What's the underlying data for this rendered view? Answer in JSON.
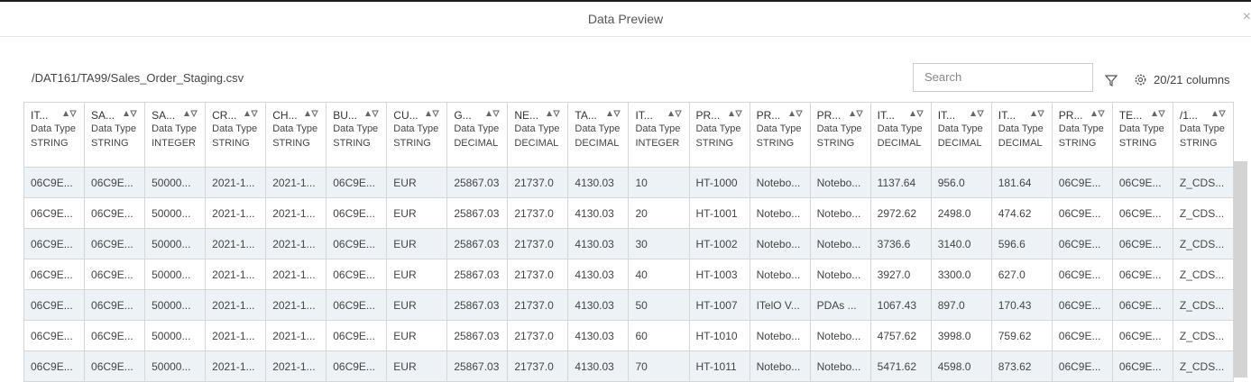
{
  "header": {
    "title": "Data Preview"
  },
  "toolbar": {
    "path": "/DAT161/TA99/Sales_Order_Staging.csv",
    "search_placeholder": "Search",
    "columns_count": "20/21 columns"
  },
  "table": {
    "columns": [
      {
        "name": "IT...",
        "label": "Data Type",
        "type": "STRING"
      },
      {
        "name": "SA...",
        "label": "Data Type",
        "type": "STRING"
      },
      {
        "name": "SA...",
        "label": "Data Type",
        "type": "INTEGER"
      },
      {
        "name": "CR...",
        "label": "Data Type",
        "type": "STRING"
      },
      {
        "name": "CH...",
        "label": "Data Type",
        "type": "STRING"
      },
      {
        "name": "BU...",
        "label": "Data Type",
        "type": "STRING"
      },
      {
        "name": "CU...",
        "label": "Data Type",
        "type": "STRING"
      },
      {
        "name": "G...",
        "label": "Data Type",
        "type": "DECIMAL"
      },
      {
        "name": "NE...",
        "label": "Data Type",
        "type": "DECIMAL"
      },
      {
        "name": "TA...",
        "label": "Data Type",
        "type": "DECIMAL"
      },
      {
        "name": "IT...",
        "label": "Data Type",
        "type": "INTEGER"
      },
      {
        "name": "PR...",
        "label": "Data Type",
        "type": "STRING"
      },
      {
        "name": "PR...",
        "label": "Data Type",
        "type": "STRING"
      },
      {
        "name": "PR...",
        "label": "Data Type",
        "type": "STRING"
      },
      {
        "name": "IT...",
        "label": "Data Type",
        "type": "DECIMAL"
      },
      {
        "name": "IT...",
        "label": "Data Type",
        "type": "DECIMAL"
      },
      {
        "name": "IT...",
        "label": "Data Type",
        "type": "DECIMAL"
      },
      {
        "name": "PR...",
        "label": "Data Type",
        "type": "STRING"
      },
      {
        "name": "TE...",
        "label": "Data Type",
        "type": "STRING"
      },
      {
        "name": "/1...",
        "label": "Data Type",
        "type": "STRING"
      }
    ],
    "rows": [
      [
        "06C9E...",
        "06C9E...",
        "50000...",
        "2021-1...",
        "2021-1...",
        "06C9E...",
        "EUR",
        "25867.03",
        "21737.0",
        "4130.03",
        "10",
        "HT-1000",
        "Notebo...",
        "Notebo...",
        "1137.64",
        "956.0",
        "181.64",
        "06C9E...",
        "06C9E...",
        "Z_CDS..."
      ],
      [
        "06C9E...",
        "06C9E...",
        "50000...",
        "2021-1...",
        "2021-1...",
        "06C9E...",
        "EUR",
        "25867.03",
        "21737.0",
        "4130.03",
        "20",
        "HT-1001",
        "Notebo...",
        "Notebo...",
        "2972.62",
        "2498.0",
        "474.62",
        "06C9E...",
        "06C9E...",
        "Z_CDS..."
      ],
      [
        "06C9E...",
        "06C9E...",
        "50000...",
        "2021-1...",
        "2021-1...",
        "06C9E...",
        "EUR",
        "25867.03",
        "21737.0",
        "4130.03",
        "30",
        "HT-1002",
        "Notebo...",
        "Notebo...",
        "3736.6",
        "3140.0",
        "596.6",
        "06C9E...",
        "06C9E...",
        "Z_CDS..."
      ],
      [
        "06C9E...",
        "06C9E...",
        "50000...",
        "2021-1...",
        "2021-1...",
        "06C9E...",
        "EUR",
        "25867.03",
        "21737.0",
        "4130.03",
        "40",
        "HT-1003",
        "Notebo...",
        "Notebo...",
        "3927.0",
        "3300.0",
        "627.0",
        "06C9E...",
        "06C9E...",
        "Z_CDS..."
      ],
      [
        "06C9E...",
        "06C9E...",
        "50000...",
        "2021-1...",
        "2021-1...",
        "06C9E...",
        "EUR",
        "25867.03",
        "21737.0",
        "4130.03",
        "50",
        "HT-1007",
        "ITelO V...",
        "PDAs ...",
        "1067.43",
        "897.0",
        "170.43",
        "06C9E...",
        "06C9E...",
        "Z_CDS..."
      ],
      [
        "06C9E...",
        "06C9E...",
        "50000...",
        "2021-1...",
        "2021-1...",
        "06C9E...",
        "EUR",
        "25867.03",
        "21737.0",
        "4130.03",
        "60",
        "HT-1010",
        "Notebo...",
        "Notebo...",
        "4757.62",
        "3998.0",
        "759.62",
        "06C9E...",
        "06C9E...",
        "Z_CDS..."
      ],
      [
        "06C9E...",
        "06C9E...",
        "50000...",
        "2021-1...",
        "2021-1...",
        "06C9E...",
        "EUR",
        "25867.03",
        "21737.0",
        "4130.03",
        "70",
        "HT-1011",
        "Notebo...",
        "Notebo...",
        "5471.62",
        "4598.0",
        "873.62",
        "06C9E...",
        "06C9E...",
        "Z_CDS..."
      ]
    ]
  }
}
